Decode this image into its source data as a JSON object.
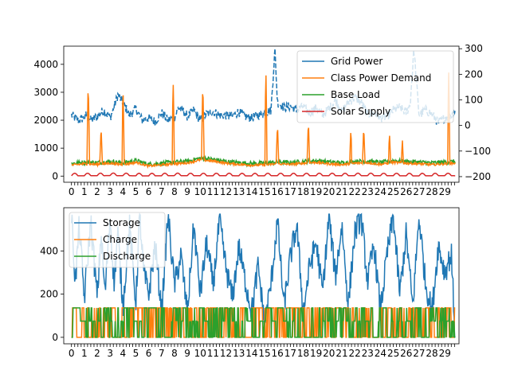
{
  "chart_data": [
    {
      "type": "line",
      "title": "",
      "xlabel": "",
      "ylabel": "",
      "x_ticks": [
        "0",
        "1",
        "2",
        "3",
        "4",
        "5",
        "6",
        "7",
        "8",
        "9",
        "10",
        "11",
        "12",
        "13",
        "14",
        "15",
        "16",
        "17",
        "18",
        "19",
        "20",
        "21",
        "22",
        "23",
        "24",
        "25",
        "26",
        "27",
        "28",
        "29"
      ],
      "xlim": [
        -0.6,
        30.1
      ],
      "ylim": [
        -220,
        4650
      ],
      "yticks": [
        0,
        1000,
        2000,
        3000,
        4000
      ],
      "y2lim": [
        -222,
        310
      ],
      "y2ticks": [
        -200,
        -100,
        0,
        100,
        200,
        300
      ],
      "legend": "top-right",
      "grid": false,
      "series": [
        {
          "name": "Grid Power",
          "axis": "right",
          "color": "#1f77b4",
          "style": "dashed",
          "x": [
            0,
            0.5,
            1,
            1.2,
            1.5,
            2,
            2.5,
            3,
            3.3,
            3.6,
            4,
            4.5,
            4.8,
            5,
            5.5,
            6,
            6.5,
            7,
            7.5,
            8,
            8.3,
            8.7,
            9,
            9.5,
            10,
            10.5,
            11,
            11.5,
            12,
            12.5,
            13,
            13.5,
            14,
            14.5,
            15,
            15.5,
            15.8,
            16,
            16.5,
            17,
            17.5,
            18,
            18.5,
            19,
            19.5,
            20,
            20.5,
            21,
            21.5,
            22,
            22.5,
            23,
            23.5,
            24,
            24.5,
            25,
            25.5,
            26,
            26.3,
            26.6,
            27,
            27.5,
            28,
            28.5,
            29,
            29.5,
            29.8
          ],
          "values": [
            40,
            20,
            30,
            45,
            20,
            35,
            60,
            30,
            70,
            120,
            90,
            40,
            55,
            65,
            20,
            30,
            15,
            50,
            20,
            30,
            70,
            55,
            35,
            60,
            20,
            45,
            55,
            40,
            40,
            35,
            55,
            35,
            30,
            40,
            50,
            60,
            300,
            90,
            70,
            75,
            60,
            75,
            50,
            70,
            40,
            65,
            100,
            55,
            90,
            110,
            90,
            45,
            50,
            30,
            35,
            60,
            70,
            50,
            80,
            300,
            40,
            60,
            45,
            10,
            30,
            40,
            60
          ]
        },
        {
          "name": "Class Power Demand",
          "axis": "left",
          "color": "#ff7f0e",
          "style": "solid",
          "peaks": [
            {
              "x": 1.3,
              "value": 3400
            },
            {
              "x": 2.3,
              "value": 1800
            },
            {
              "x": 4.0,
              "value": 3250
            },
            {
              "x": 7.9,
              "value": 3400
            },
            {
              "x": 10.2,
              "value": 3400
            },
            {
              "x": 15.1,
              "value": 3800
            },
            {
              "x": 16.0,
              "value": 1900
            },
            {
              "x": 18.4,
              "value": 2000
            },
            {
              "x": 21.7,
              "value": 1700
            },
            {
              "x": 22.7,
              "value": 1800
            },
            {
              "x": 24.7,
              "value": 1550
            },
            {
              "x": 25.7,
              "value": 1300
            },
            {
              "x": 29.3,
              "value": 3800
            }
          ]
        },
        {
          "name": "Base Load",
          "axis": "left",
          "color": "#2ca02c",
          "style": "solid",
          "x": [
            0,
            1,
            2,
            3,
            4,
            5,
            6,
            7,
            8,
            9,
            10,
            11,
            12,
            13,
            14,
            15,
            16,
            17,
            18,
            19,
            20,
            21,
            22,
            23,
            24,
            25,
            26,
            27,
            28,
            29,
            29.8
          ],
          "values": [
            450,
            500,
            480,
            520,
            470,
            550,
            420,
            460,
            500,
            530,
            640,
            600,
            520,
            480,
            450,
            460,
            500,
            480,
            520,
            550,
            500,
            470,
            520,
            540,
            480,
            550,
            520,
            500,
            470,
            500,
            520
          ]
        },
        {
          "name": "Solar Supply",
          "axis": "left",
          "color": "#d62728",
          "style": "solid",
          "x": [
            0,
            1,
            2,
            3,
            4,
            5,
            6,
            7,
            8,
            9,
            10,
            11,
            12,
            13,
            14,
            15,
            16,
            17,
            18,
            19,
            20,
            21,
            22,
            23,
            24,
            25,
            26,
            27,
            28,
            29,
            29.8
          ],
          "values": [
            50,
            60,
            70,
            100,
            80,
            50,
            40,
            60,
            90,
            70,
            60,
            60,
            80,
            50,
            40,
            60,
            70,
            50,
            60,
            80,
            70,
            60,
            70,
            80,
            60,
            70,
            50,
            40,
            60,
            70,
            60
          ]
        }
      ]
    },
    {
      "type": "line",
      "title": "",
      "xlabel": "",
      "ylabel": "",
      "x_ticks": [
        "0",
        "1",
        "2",
        "3",
        "4",
        "5",
        "6",
        "7",
        "8",
        "9",
        "10",
        "11",
        "12",
        "13",
        "14",
        "15",
        "16",
        "17",
        "18",
        "19",
        "20",
        "21",
        "22",
        "23",
        "24",
        "25",
        "26",
        "27",
        "28",
        "29"
      ],
      "xlim": [
        -0.6,
        30.1
      ],
      "ylim": [
        -30,
        600
      ],
      "yticks": [
        0,
        200,
        400
      ],
      "legend": "top-left",
      "grid": false,
      "series": [
        {
          "name": "Storage",
          "color": "#1f77b4",
          "x": [
            0,
            0.3,
            0.6,
            1,
            1.5,
            2,
            2.3,
            2.6,
            3,
            3.3,
            3.6,
            4,
            4.5,
            5,
            5.3,
            5.6,
            6,
            6.5,
            7,
            7.5,
            8,
            8.5,
            9,
            9.5,
            10,
            10.5,
            11,
            11.5,
            12,
            12.5,
            13,
            13.5,
            14,
            14.5,
            15,
            15.5,
            16,
            16.5,
            17,
            17.5,
            18,
            18.5,
            19,
            19.5,
            20,
            20.5,
            21,
            21.5,
            22,
            22.5,
            23,
            23.5,
            24,
            24.5,
            25,
            25.5,
            26,
            26.5,
            27,
            27.5,
            28,
            28.5,
            29,
            29.5,
            29.8
          ],
          "values": [
            570,
            250,
            520,
            180,
            540,
            180,
            480,
            200,
            560,
            250,
            480,
            140,
            520,
            160,
            570,
            300,
            200,
            430,
            120,
            570,
            240,
            380,
            110,
            520,
            200,
            440,
            240,
            540,
            320,
            180,
            420,
            260,
            120,
            330,
            60,
            250,
            540,
            140,
            370,
            520,
            120,
            330,
            440,
            210,
            560,
            280,
            520,
            150,
            480,
            560,
            260,
            430,
            120,
            380,
            560,
            200,
            480,
            140,
            560,
            250,
            120,
            430,
            300,
            390,
            0
          ]
        },
        {
          "name": "Charge",
          "color": "#ff7f0e",
          "level": 136,
          "range": [
            0,
            29.8
          ]
        },
        {
          "name": "Discharge",
          "color": "#2ca02c",
          "level": 136,
          "secondary_level": 75,
          "range": [
            0,
            29.8
          ]
        }
      ]
    }
  ]
}
